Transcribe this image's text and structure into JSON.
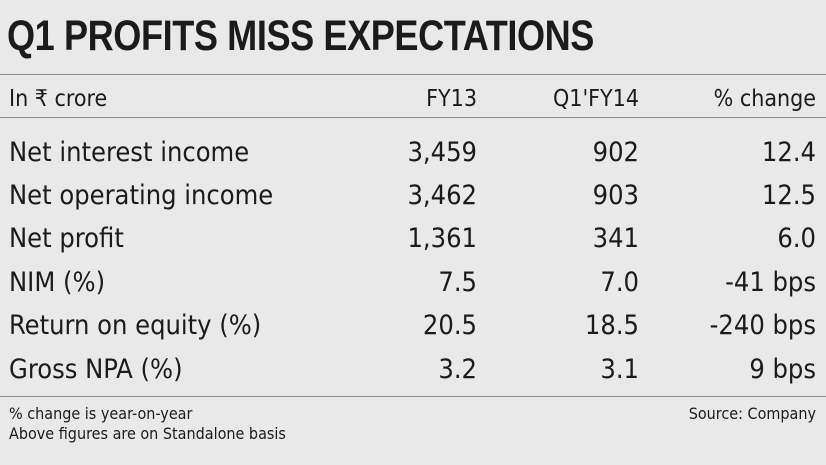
{
  "title": "Q1 PROFITS MISS EXPECTATIONS",
  "table": {
    "headers": [
      "In ₹ crore",
      "FY13",
      "Q1'FY14",
      "% change"
    ],
    "rows": [
      [
        "Net interest income",
        "3,459",
        "902",
        "12.4"
      ],
      [
        "Net operating income",
        "3,462",
        "903",
        "12.5"
      ],
      [
        "Net profit",
        "1,361",
        "341",
        "6.0"
      ],
      [
        "NIM (%)",
        "7.5",
        "7.0",
        "-41 bps"
      ],
      [
        "Return on equity (%)",
        "20.5",
        "18.5",
        "-240 bps"
      ],
      [
        "Gross NPA (%)",
        "3.2",
        "3.1",
        "9 bps"
      ]
    ]
  },
  "footnotes": [
    "% change is year-on-year",
    "Above figures are on Standalone basis"
  ],
  "source": "Source: Company",
  "colors": {
    "background": "#e9e9e9",
    "text": "#1b1b1b",
    "rule": "#8f8f8f"
  }
}
